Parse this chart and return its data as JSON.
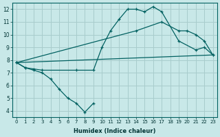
{
  "xlabel": "Humidex (Indice chaleur)",
  "bg_color": "#c8e8e8",
  "grid_color": "#a8cccc",
  "line_color": "#006060",
  "xlim": [
    -0.5,
    23.5
  ],
  "ylim": [
    3.5,
    12.5
  ],
  "xticks": [
    0,
    1,
    2,
    3,
    4,
    5,
    6,
    7,
    8,
    9,
    10,
    11,
    12,
    13,
    14,
    15,
    16,
    17,
    18,
    19,
    20,
    21,
    22,
    23
  ],
  "yticks": [
    4,
    5,
    6,
    7,
    8,
    9,
    10,
    11,
    12
  ],
  "curve1_x": [
    0,
    1,
    2,
    3,
    4,
    5,
    6,
    7,
    8,
    9
  ],
  "curve1_y": [
    7.8,
    7.4,
    7.2,
    7.0,
    6.5,
    5.7,
    5.0,
    4.6,
    3.9,
    4.6
  ],
  "curve2_x": [
    0,
    1,
    2,
    3,
    7,
    9,
    10,
    11,
    12,
    13,
    14,
    15,
    16,
    17,
    19,
    21,
    22,
    23
  ],
  "curve2_y": [
    7.8,
    7.4,
    7.3,
    7.2,
    7.2,
    7.2,
    9.0,
    10.3,
    11.2,
    12.0,
    12.0,
    11.8,
    12.2,
    11.8,
    9.5,
    8.8,
    9.0,
    8.4
  ],
  "curve3_x": [
    0,
    14,
    17,
    19,
    20,
    21,
    22,
    23
  ],
  "curve3_y": [
    7.8,
    10.3,
    11.0,
    10.3,
    10.3,
    10.0,
    9.5,
    8.4
  ],
  "curve4_x": [
    0,
    23
  ],
  "curve4_y": [
    7.8,
    8.4
  ]
}
